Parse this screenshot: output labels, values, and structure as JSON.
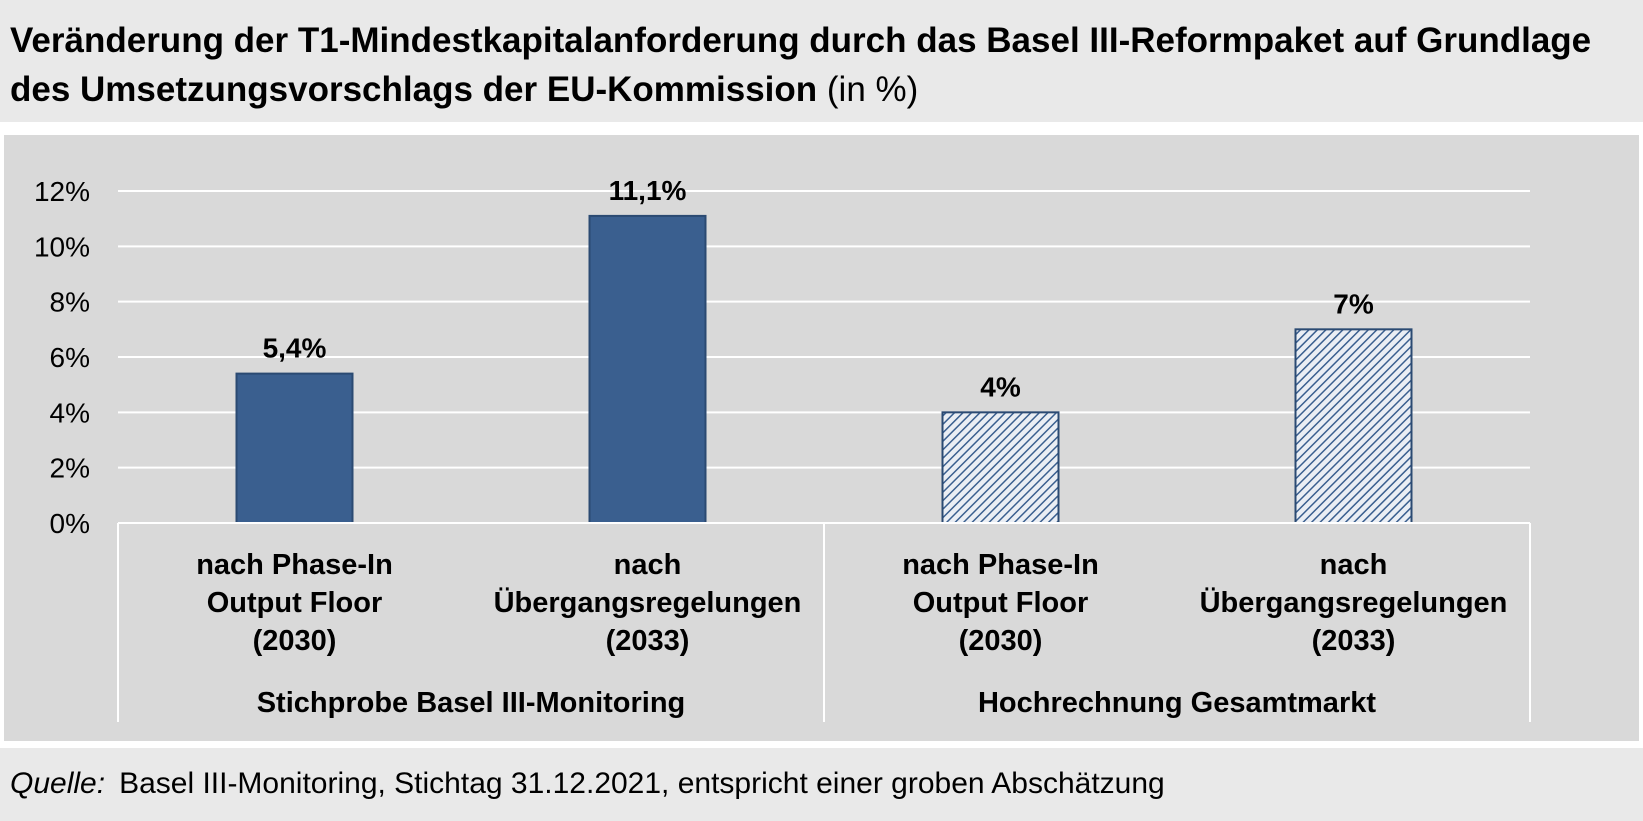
{
  "header": {
    "title_main": "Veränderung der T1-Mindestkapitalanforderung durch das Basel III-Reformpaket auf Grundlage des Umsetzungsvorschlags der EU-Kommission",
    "title_unit": "(in %)"
  },
  "footer": {
    "source_label": "Quelle:",
    "source_text": "Basel III-Monitoring, Stichtag 31.12.2021, entspricht einer groben Abschätzung"
  },
  "chart_data": {
    "type": "bar",
    "ylim": [
      0,
      12
    ],
    "yticks": [
      0,
      2,
      4,
      6,
      8,
      10,
      12
    ],
    "ytick_labels": [
      "0%",
      "2%",
      "4%",
      "6%",
      "8%",
      "10%",
      "12%"
    ],
    "grid": true,
    "colors": {
      "bar": "#3a5f8f",
      "bar_border": "#2b4a72",
      "gridline": "#ffffff",
      "background": "#d9d9d9"
    },
    "bars": [
      {
        "value": 5.4,
        "label": "5,4%",
        "category": [
          "nach Phase-In",
          "Output Floor",
          "(2030)"
        ],
        "group": 0,
        "pattern": "solid"
      },
      {
        "value": 11.1,
        "label": "11,1%",
        "category": [
          "nach",
          "Übergangsregelungen",
          "(2033)"
        ],
        "group": 0,
        "pattern": "solid"
      },
      {
        "value": 4,
        "label": "4%",
        "category": [
          "nach Phase-In",
          "Output Floor",
          "(2030)"
        ],
        "group": 1,
        "pattern": "hatched"
      },
      {
        "value": 7,
        "label": "7%",
        "category": [
          "nach",
          "Übergangsregelungen",
          "(2033)"
        ],
        "group": 1,
        "pattern": "hatched"
      }
    ],
    "groups": [
      "Stichprobe Basel III-Monitoring",
      "Hochrechnung Gesamtmarkt"
    ]
  }
}
